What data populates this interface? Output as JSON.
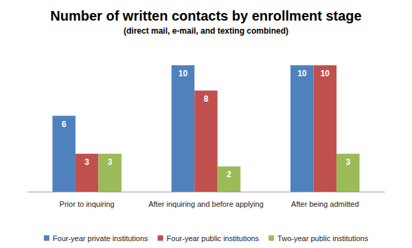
{
  "chart_data": {
    "type": "bar",
    "title": "Number of written contacts by enrollment stage",
    "subtitle": "(direct mail, e-mail, and texting combined)",
    "categories": [
      "Prior to inquiring",
      "After inquiring and before applying",
      "After being admitted"
    ],
    "series": [
      {
        "name": "Four-year private institutions",
        "color": "#4f81bd",
        "values": [
          6,
          10,
          10
        ]
      },
      {
        "name": "Four-year public institutions",
        "color": "#c0504d",
        "values": [
          3,
          8,
          10
        ]
      },
      {
        "name": "Two-year public institutions",
        "color": "#9bbb59",
        "values": [
          3,
          2,
          3
        ]
      }
    ],
    "ylim": [
      0,
      10
    ],
    "yticks": [
      0,
      10
    ],
    "grid": false,
    "tick_labels": "x",
    "data_labels": true,
    "legend": "bottom"
  }
}
